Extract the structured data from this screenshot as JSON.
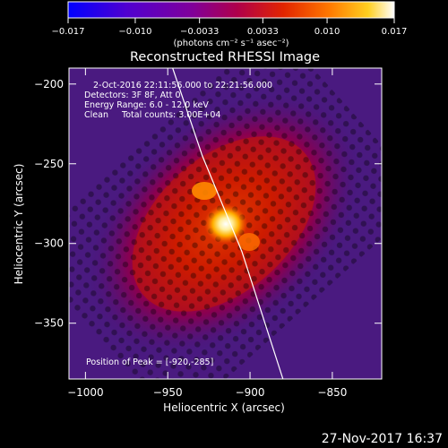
{
  "chart_data": {
    "type": "heatmap",
    "title": "Reconstructed RHESSI Image",
    "xlabel": "Heliocentric X (arcsec)",
    "ylabel": "Heliocentric Y (arcsec)",
    "xlim": [
      -1010,
      -820
    ],
    "ylim": [
      -385,
      -190
    ],
    "x_ticks": [
      -1000,
      -950,
      -900,
      -850
    ],
    "x_tick_labels": [
      "−1000",
      "−950",
      "−900",
      "−850"
    ],
    "y_ticks": [
      -200,
      -250,
      -300,
      -350
    ],
    "y_tick_labels": [
      "−200",
      "−250",
      "−300",
      "−350"
    ],
    "colorbar": {
      "range": [
        -0.017,
        0.017
      ],
      "ticks": [
        -0.017,
        -0.01,
        -0.0033,
        0.0033,
        0.01,
        0.017
      ],
      "tick_labels": [
        "−0.017",
        "−0.010",
        "−0.0033",
        "0.0033",
        "0.010",
        "0.017"
      ],
      "units_label": "(photons cm⁻² s⁻¹ asec⁻²)",
      "colormap": [
        "#0000ff",
        "#6a00c8",
        "#7a00a0",
        "#a00060",
        "#d41a00",
        "#ff6a00",
        "#ffc000",
        "#ffffff"
      ]
    },
    "info_lines": [
      "2-Oct-2016 22:11:56.000 to 22:21:56.000",
      "Detectors: 3F 8F, Att 0",
      "Energy Range: 6.0 - 12.0 keV",
      "Clean     Total counts: 3.00E+04"
    ],
    "peak_label": "Position of Peak = [-920,-285]",
    "peak": [
      -920,
      -285
    ],
    "limb_line": [
      [
        -947,
        -190
      ],
      [
        -929,
        -245
      ],
      [
        -905,
        -305
      ],
      [
        -880,
        -385
      ]
    ],
    "footer": "27-Nov-2017 16:37"
  }
}
